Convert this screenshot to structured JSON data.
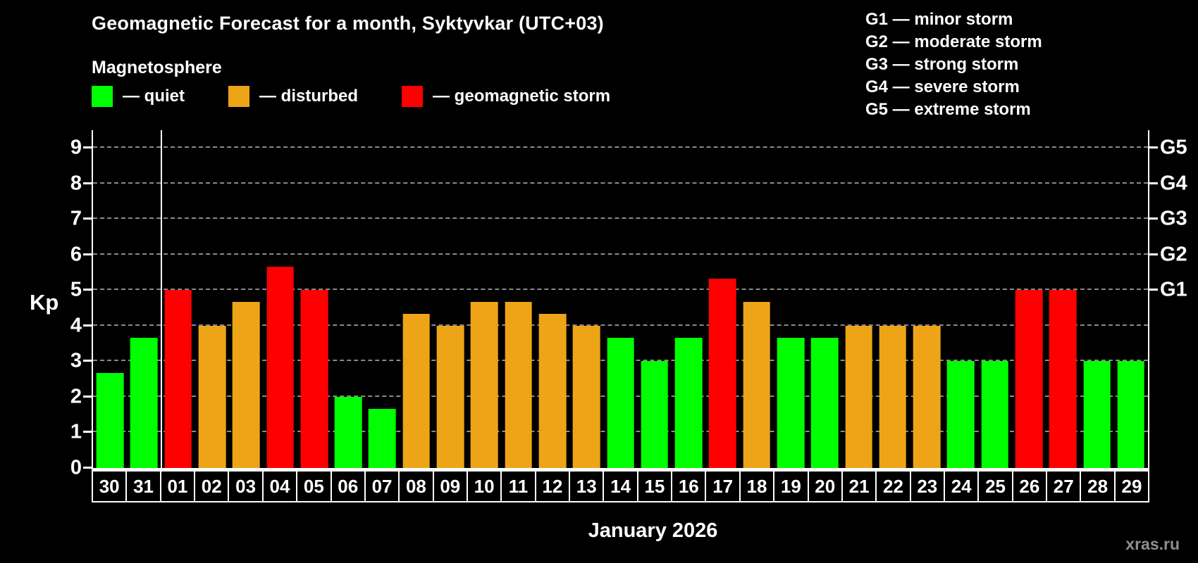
{
  "title": "Geomagnetic Forecast for a month, Syktyvkar (UTC+03)",
  "subtitle": "Magnetosphere",
  "legend": {
    "items": [
      {
        "key": "quiet",
        "label": "— quiet",
        "color": "#00ff00"
      },
      {
        "key": "disturbed",
        "label": "— disturbed",
        "color": "#eda417"
      },
      {
        "key": "storm",
        "label": "— geomagnetic storm",
        "color": "#ff0000"
      }
    ]
  },
  "storm_scale": {
    "items": [
      "G1 — minor storm",
      "G2 — moderate storm",
      "G3 — strong storm",
      "G4 — severe storm",
      "G5 — extreme storm"
    ]
  },
  "axis": {
    "kp_label": "Kp",
    "y_ticks": [
      0,
      1,
      2,
      3,
      4,
      5,
      6,
      7,
      8,
      9
    ],
    "g_labels": [
      {
        "kp": 5,
        "label": "G1"
      },
      {
        "kp": 6,
        "label": "G2"
      },
      {
        "kp": 7,
        "label": "G3"
      },
      {
        "kp": 8,
        "label": "G4"
      },
      {
        "kp": 9,
        "label": "G5"
      }
    ]
  },
  "x_axis": {
    "month_label": "January 2026"
  },
  "watermark": "xras.ru",
  "chart_data": {
    "type": "bar",
    "title": "Geomagnetic Forecast for a month, Syktyvkar (UTC+03)",
    "ylabel": "Kp",
    "ylim": [
      0,
      9.5
    ],
    "grid": "dashed horizontal at each integer Kp",
    "legend_position": "top-left",
    "categories": [
      "30",
      "31",
      "01",
      "02",
      "03",
      "04",
      "05",
      "06",
      "07",
      "08",
      "09",
      "10",
      "11",
      "12",
      "13",
      "14",
      "15",
      "16",
      "17",
      "18",
      "19",
      "20",
      "21",
      "22",
      "23",
      "24",
      "25",
      "26",
      "27",
      "28",
      "29"
    ],
    "values": [
      2.67,
      3.67,
      5.0,
      4.0,
      4.67,
      5.67,
      5.0,
      2.0,
      1.67,
      4.33,
      4.0,
      4.67,
      4.67,
      4.33,
      4.0,
      3.67,
      3.0,
      3.67,
      5.33,
      4.67,
      3.67,
      3.67,
      4.0,
      4.0,
      4.0,
      3.0,
      3.0,
      5.0,
      5.0,
      3.0,
      3.0
    ],
    "statuses": [
      "quiet",
      "quiet",
      "storm",
      "disturbed",
      "disturbed",
      "storm",
      "storm",
      "quiet",
      "quiet",
      "disturbed",
      "disturbed",
      "disturbed",
      "disturbed",
      "disturbed",
      "disturbed",
      "quiet",
      "quiet",
      "quiet",
      "storm",
      "disturbed",
      "quiet",
      "quiet",
      "disturbed",
      "disturbed",
      "disturbed",
      "quiet",
      "quiet",
      "storm",
      "storm",
      "quiet",
      "quiet"
    ],
    "colors": {
      "quiet": "#00ff00",
      "disturbed": "#eda417",
      "storm": "#ff0000"
    },
    "month_boundary_after_index": 1
  }
}
